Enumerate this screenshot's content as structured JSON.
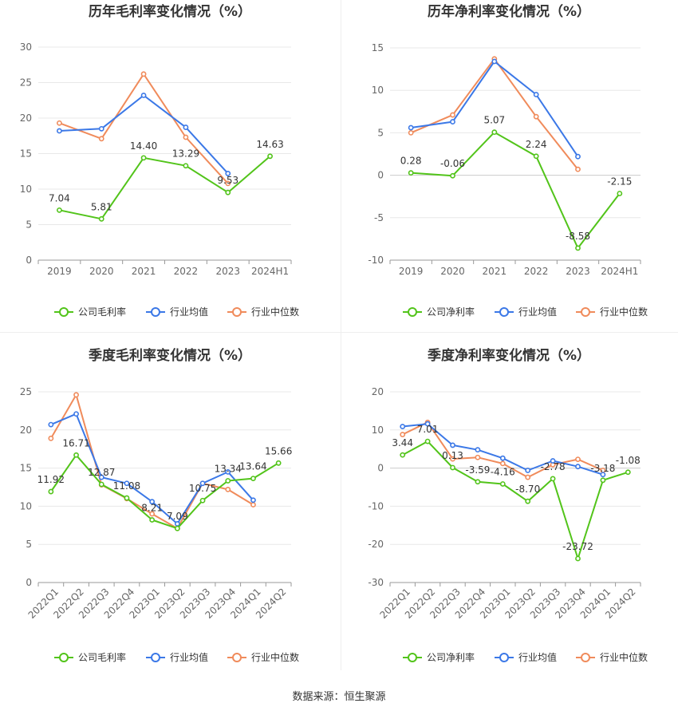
{
  "source_text": "数据来源：恒生聚源",
  "colors": {
    "company": "#52c41a",
    "industry_avg": "#3b78e7",
    "industry_median": "#f08b5b"
  },
  "chart_data": [
    {
      "type": "line",
      "title": "历年毛利率变化情况（%）",
      "categories": [
        "2019",
        "2020",
        "2021",
        "2022",
        "2023",
        "2024H1"
      ],
      "ylim": [
        0,
        30
      ],
      "yticks": [
        0,
        5,
        10,
        15,
        20,
        25,
        30
      ],
      "grid": true,
      "legend_position": "bottom",
      "series": [
        {
          "name": "公司毛利率",
          "values": [
            7.04,
            5.81,
            14.4,
            13.29,
            9.53,
            14.63
          ],
          "labels": [
            "7.04",
            "5.81",
            "14.40",
            "13.29",
            "9.53",
            "14.63"
          ]
        },
        {
          "name": "行业均值",
          "values": [
            18.2,
            18.5,
            23.2,
            18.7,
            12.2,
            null
          ]
        },
        {
          "name": "行业中位数",
          "values": [
            19.3,
            17.1,
            26.2,
            17.3,
            10.8,
            null
          ]
        }
      ]
    },
    {
      "type": "line",
      "title": "历年净利率变化情况（%）",
      "categories": [
        "2019",
        "2020",
        "2021",
        "2022",
        "2023",
        "2024H1"
      ],
      "ylim": [
        -10,
        15
      ],
      "yticks": [
        -10,
        -5,
        0,
        5,
        10,
        15
      ],
      "grid": true,
      "legend_position": "bottom",
      "series": [
        {
          "name": "公司净利率",
          "values": [
            0.28,
            -0.06,
            5.07,
            2.24,
            -8.58,
            -2.15
          ],
          "labels": [
            "0.28",
            "-0.06",
            "5.07",
            "2.24",
            "-8.58",
            "-2.15"
          ]
        },
        {
          "name": "行业均值",
          "values": [
            5.6,
            6.3,
            13.4,
            9.5,
            2.2,
            null
          ]
        },
        {
          "name": "行业中位数",
          "values": [
            5.0,
            7.1,
            13.7,
            6.9,
            0.7,
            null
          ]
        }
      ]
    },
    {
      "type": "line",
      "title": "季度毛利率变化情况（%）",
      "categories": [
        "2022Q1",
        "2022Q2",
        "2022Q3",
        "2022Q4",
        "2023Q1",
        "2023Q2",
        "2023Q3",
        "2023Q4",
        "2024Q1",
        "2024Q2"
      ],
      "ylim": [
        0,
        25
      ],
      "yticks": [
        0,
        5,
        10,
        15,
        20,
        25
      ],
      "grid": true,
      "legend_position": "bottom",
      "series": [
        {
          "name": "公司毛利率",
          "values": [
            11.92,
            16.71,
            12.87,
            11.08,
            8.21,
            7.09,
            10.75,
            13.34,
            13.64,
            15.66
          ],
          "labels": [
            "11.92",
            "16.71",
            "12.87",
            "11.08",
            "8.21",
            "7.09",
            "10.75",
            "13.34",
            "13.64",
            "15.66"
          ]
        },
        {
          "name": "行业均值",
          "values": [
            20.7,
            22.1,
            13.8,
            13.0,
            10.6,
            7.7,
            13.0,
            14.5,
            10.8,
            null
          ]
        },
        {
          "name": "行业中位数",
          "values": [
            18.9,
            24.6,
            12.8,
            11.0,
            9.0,
            7.1,
            13.0,
            12.2,
            10.2,
            null
          ]
        }
      ]
    },
    {
      "type": "line",
      "title": "季度净利率变化情况（%）",
      "categories": [
        "2022Q1",
        "2022Q2",
        "2022Q3",
        "2022Q4",
        "2023Q1",
        "2023Q2",
        "2023Q3",
        "2023Q4",
        "2024Q1",
        "2024Q2"
      ],
      "ylim": [
        -30,
        20
      ],
      "yticks": [
        -30,
        -20,
        -10,
        0,
        10,
        20
      ],
      "grid": true,
      "legend_position": "bottom",
      "series": [
        {
          "name": "公司净利率",
          "values": [
            3.44,
            7.01,
            0.13,
            -3.59,
            -4.16,
            -8.7,
            -2.78,
            -23.72,
            -3.18,
            -1.08
          ],
          "labels": [
            "3.44",
            "7.01",
            "0.13",
            "-3.59",
            "-4.16",
            "-8.70",
            "-2.78",
            "-23.72",
            "-3.18",
            "-1.08"
          ]
        },
        {
          "name": "行业均值",
          "values": [
            10.9,
            11.6,
            6.0,
            4.8,
            2.6,
            -0.6,
            1.9,
            0.4,
            -1.7,
            null
          ]
        },
        {
          "name": "行业中位数",
          "values": [
            8.8,
            12.0,
            2.4,
            2.8,
            1.2,
            -2.4,
            0.9,
            2.3,
            -0.6,
            null
          ]
        }
      ]
    }
  ]
}
